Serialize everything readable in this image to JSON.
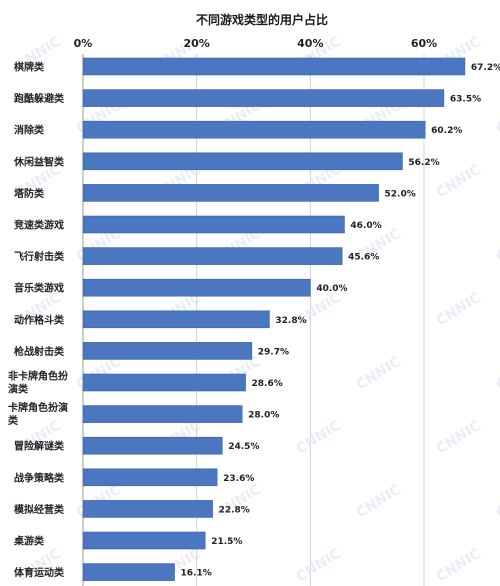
{
  "chart_data": {
    "type": "bar",
    "orientation": "horizontal",
    "title": "不同游戏类型的用户占比",
    "watermark": "CNNIC",
    "xlim": [
      0,
      70
    ],
    "xticks": [
      0,
      20,
      40,
      60
    ],
    "xtick_labels": [
      "0%",
      "20%",
      "40%",
      "60%"
    ],
    "x_axis_position": "top",
    "grid": "vertical",
    "bar_color": "#4a77c0",
    "categories": [
      "棋牌类",
      "跑酷躲避类",
      "消除类",
      "休闲益智类",
      "塔防类",
      "竞速类游戏",
      "飞行射击类",
      "音乐类游戏",
      "动作格斗类",
      "枪战射击类",
      "非卡牌角色扮演类",
      "卡牌角色扮演类",
      "冒险解谜类",
      "战争策略类",
      "模拟经营类",
      "桌游类",
      "体育运动类"
    ],
    "values": [
      67.2,
      63.5,
      60.2,
      56.2,
      52.0,
      46.0,
      45.6,
      40.0,
      32.8,
      29.7,
      28.6,
      28.0,
      24.5,
      23.6,
      22.8,
      21.5,
      16.1
    ],
    "value_labels": [
      "67.2%",
      "63.5%",
      "60.2%",
      "56.2%",
      "52.0%",
      "46.0%",
      "45.6%",
      "40.0%",
      "32.8%",
      "29.7%",
      "28.6%",
      "28.0%",
      "24.5%",
      "23.6%",
      "22.8%",
      "21.5%",
      "16.1%"
    ]
  }
}
